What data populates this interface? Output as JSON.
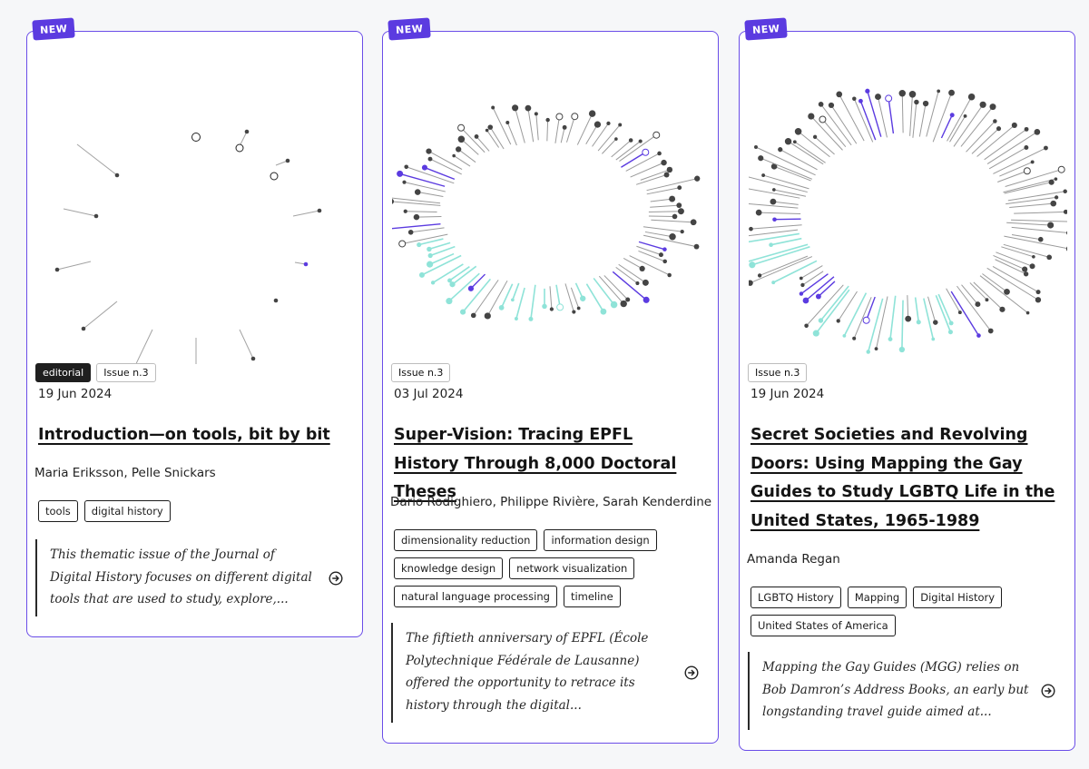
{
  "cards": [
    {
      "badge": "NEW",
      "labels": [
        "editorial",
        "Issue n.3"
      ],
      "date": "19 Jun 2024",
      "title": "Introduction—on tools, bit by bit",
      "authors": "Maria Eriksson, Pelle Snickars",
      "tags": [
        "tools",
        "digital history"
      ],
      "excerpt": "This thematic issue of the Journal of Digital History focuses on different digital tools that are used to study, explore,..."
    },
    {
      "badge": "NEW",
      "labels": [
        "Issue n.3"
      ],
      "date": "03 Jul 2024",
      "title": "Super-Vision: Tracing EPFL History Through 8,000 Doctoral Theses",
      "authors": "Dario Rodighiero, Philippe Rivière, Sarah Kenderdine",
      "tags": [
        "dimensionality reduction",
        "information design",
        "knowledge design",
        "network visualization",
        "natural language processing",
        "timeline"
      ],
      "excerpt": "The fiftieth anniversary of EPFL (École Polytechnique Fédérale de Lausanne) offered the opportunity to retrace its history through the digital..."
    },
    {
      "badge": "NEW",
      "labels": [
        "Issue n.3"
      ],
      "date": "19 Jun 2024",
      "title": "Secret Societies and Revolving Doors: Using Mapping the Gay Guides to Study LGBTQ Life in the United States, 1965-1989",
      "authors": "Amanda Regan",
      "tags": [
        "LGBTQ History",
        "Mapping",
        "Digital History",
        "United States of America"
      ],
      "excerpt": "Mapping the Gay Guides (MGG) relies on Bob Damron’s Address Books, an early but longstanding travel guide aimed at..."
    }
  ],
  "colors": {
    "accent": "#6a4de8",
    "badge": "#5b3be0",
    "purple_mark": "#5b3be0",
    "teal_mark": "#8fe3d8",
    "gray_mark": "#444444"
  },
  "icons": {
    "read_more": "arrow-circle-right-icon"
  }
}
